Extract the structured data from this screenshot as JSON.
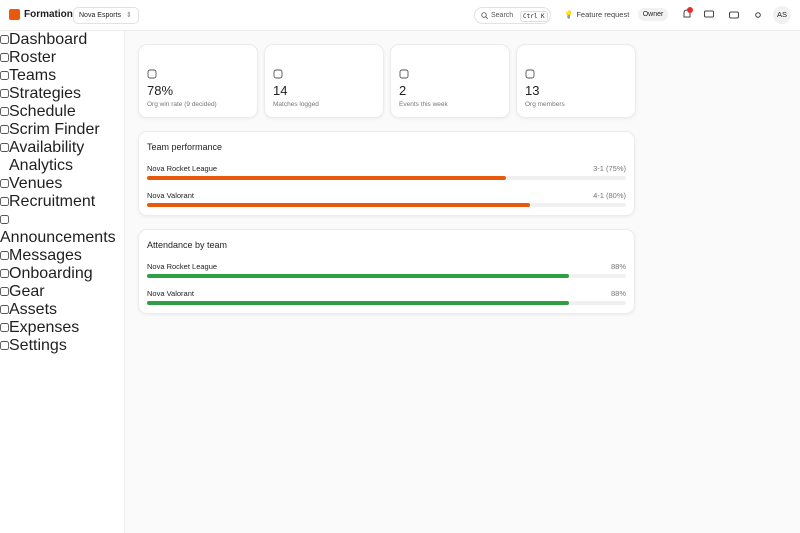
{
  "header": {
    "brand": "Formation",
    "workspace": "Nova Esports",
    "search": "Search",
    "shortcut": "Ctrl K",
    "feature_request": "Feature request",
    "role": "Owner",
    "avatar": "AS"
  },
  "sidebar": {
    "items": [
      "Dashboard",
      "Roster",
      "Teams",
      "Strategies",
      "Schedule",
      "Scrim Finder",
      "Availability",
      "Analytics",
      "Venues",
      "Recruitment",
      "Announcements",
      "Messages",
      "Onboarding",
      "Gear",
      "Assets",
      "Expenses",
      "Settings"
    ]
  },
  "stats": [
    {
      "value": "78%",
      "label": "Org win rate (9 decided)"
    },
    {
      "value": "14",
      "label": "Matches logged"
    },
    {
      "value": "2",
      "label": "Events this week"
    },
    {
      "value": "13",
      "label": "Org members"
    }
  ],
  "team_performance": {
    "title": "Team performance",
    "rows": [
      {
        "name": "Nova Rocket League",
        "result": "3-1 (75%)",
        "rate": 75
      },
      {
        "name": "Nova Valorant",
        "result": "4-1 (80%)",
        "rate": 80
      }
    ]
  },
  "attendance": {
    "title": "Attendance by team",
    "rows": [
      {
        "name": "Nova Rocket League",
        "label": "88%",
        "rate": 88
      },
      {
        "name": "Nova Valorant",
        "label": "88%",
        "rate": 88
      }
    ]
  }
}
